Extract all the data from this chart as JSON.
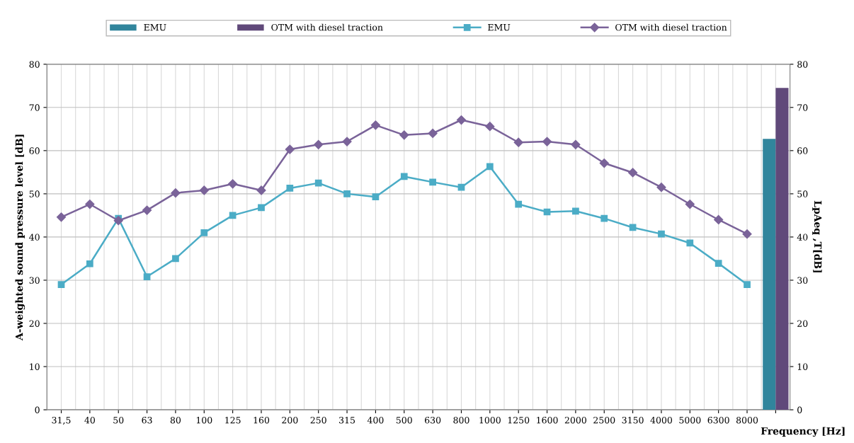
{
  "chart_data": {
    "type": "line",
    "xlabel": "Frequency [Hz]",
    "ylabel": "A-weighted sound pressure level [dB]",
    "y2label": "LpAeq ,T[dB]",
    "categories": [
      "31,5",
      "40",
      "50",
      "63",
      "80",
      "100",
      "125",
      "160",
      "200",
      "250",
      "315",
      "400",
      "500",
      "630",
      "800",
      "1000",
      "1250",
      "1600",
      "2000",
      "2500",
      "3150",
      "4000",
      "5000",
      "6300",
      "8000",
      null
    ],
    "series": [
      {
        "name": "EMU",
        "type": "bar",
        "axis": "y2",
        "color": "#31859c",
        "values": [
          null,
          null,
          null,
          null,
          null,
          null,
          null,
          null,
          null,
          null,
          null,
          null,
          null,
          null,
          null,
          null,
          null,
          null,
          null,
          null,
          null,
          null,
          null,
          null,
          null,
          62.7
        ]
      },
      {
        "name": "OTM with diesel traction",
        "type": "bar",
        "axis": "y2",
        "color": "#60497a",
        "values": [
          null,
          null,
          null,
          null,
          null,
          null,
          null,
          null,
          null,
          null,
          null,
          null,
          null,
          null,
          null,
          null,
          null,
          null,
          null,
          null,
          null,
          null,
          null,
          null,
          null,
          74.5
        ]
      },
      {
        "name": "EMU",
        "marker": "square",
        "color": "#4bacc6",
        "values": [
          29,
          33.8,
          44.3,
          30.8,
          35,
          41,
          45,
          46.8,
          51.3,
          52.5,
          50,
          49.3,
          54,
          52.7,
          51.5,
          56.3,
          47.6,
          45.8,
          46,
          44.3,
          42.2,
          40.7,
          38.6,
          33.9,
          29,
          null
        ]
      },
      {
        "name": "OTM with diesel traction",
        "marker": "diamond",
        "color": "#7a6399",
        "values": [
          44.6,
          47.6,
          43.8,
          46.2,
          50.2,
          50.8,
          52.3,
          50.8,
          60.3,
          61.4,
          62.1,
          65.9,
          63.6,
          64,
          67.1,
          65.6,
          61.9,
          62.1,
          61.4,
          57.1,
          54.9,
          51.5,
          47.6,
          44,
          40.7,
          null
        ]
      }
    ],
    "ylim": [
      0,
      80
    ],
    "yticks": [
      0,
      10,
      20,
      30,
      40,
      50,
      60,
      70,
      80
    ],
    "y2lim": [
      0,
      80
    ],
    "y2ticks": [
      0,
      10,
      20,
      30,
      40,
      50,
      60,
      70,
      80
    ],
    "grid": true,
    "legend": "top"
  }
}
